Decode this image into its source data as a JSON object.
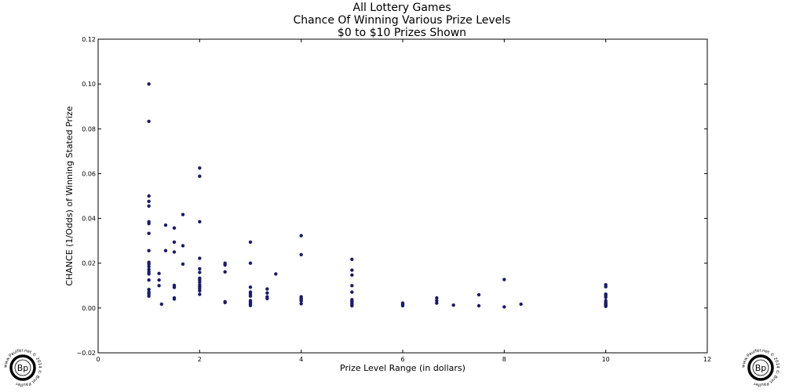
{
  "chart_data": {
    "type": "scatter",
    "title_lines": [
      "All Lottery Games",
      "Chance Of Winning Various Prize Levels",
      "$0 to $10 Prizes Shown"
    ],
    "xlabel": "Prize Level Range (in dollars)",
    "ylabel": "CHANCE (1/Odds) of Winning Stated Prize",
    "xlim": [
      0,
      12
    ],
    "ylim": [
      -0.02,
      0.12
    ],
    "x_ticks": [
      0,
      2,
      4,
      6,
      8,
      10,
      12
    ],
    "x_tick_labels": [
      "0",
      "2",
      "4",
      "6",
      "8",
      "10",
      "12"
    ],
    "y_ticks": [
      -0.02,
      0.0,
      0.02,
      0.04,
      0.06,
      0.08,
      0.1,
      0.12
    ],
    "y_tick_labels": [
      "−0.02",
      "0.00",
      "0.02",
      "0.04",
      "0.06",
      "0.08",
      "0.10",
      "0.12"
    ],
    "grid": false,
    "legend": "none",
    "marker_color": "#1a1a6e",
    "points": [
      [
        1,
        0.1
      ],
      [
        1,
        0.0833
      ],
      [
        1,
        0.05
      ],
      [
        1,
        0.0476
      ],
      [
        1,
        0.0455
      ],
      [
        1,
        0.0385
      ],
      [
        1,
        0.0377
      ],
      [
        1,
        0.0333
      ],
      [
        1,
        0.0256
      ],
      [
        1,
        0.0204
      ],
      [
        1,
        0.0196
      ],
      [
        1,
        0.0185
      ],
      [
        1,
        0.0172
      ],
      [
        1,
        0.0161
      ],
      [
        1,
        0.0152
      ],
      [
        1,
        0.0125
      ],
      [
        1,
        0.0083
      ],
      [
        1,
        0.0071
      ],
      [
        1,
        0.0063
      ],
      [
        1,
        0.0053
      ],
      [
        1.2,
        0.0154
      ],
      [
        1.2,
        0.0125
      ],
      [
        1.2,
        0.01
      ],
      [
        1.25,
        0.0017
      ],
      [
        1.33,
        0.037
      ],
      [
        1.33,
        0.0256
      ],
      [
        1.5,
        0.0357
      ],
      [
        1.5,
        0.0294
      ],
      [
        1.5,
        0.025
      ],
      [
        1.5,
        0.0101
      ],
      [
        1.5,
        0.0092
      ],
      [
        1.5,
        0.0045
      ],
      [
        1.5,
        0.004
      ],
      [
        1.67,
        0.0417
      ],
      [
        1.67,
        0.0278
      ],
      [
        1.67,
        0.0196
      ],
      [
        2,
        0.0625
      ],
      [
        2,
        0.0588
      ],
      [
        2,
        0.0385
      ],
      [
        2,
        0.0222
      ],
      [
        2,
        0.0175
      ],
      [
        2,
        0.0159
      ],
      [
        2,
        0.0133
      ],
      [
        2,
        0.0125
      ],
      [
        2,
        0.0115
      ],
      [
        2,
        0.0103
      ],
      [
        2,
        0.0095
      ],
      [
        2,
        0.0087
      ],
      [
        2,
        0.0077
      ],
      [
        2,
        0.0061
      ],
      [
        2.5,
        0.02
      ],
      [
        2.5,
        0.0192
      ],
      [
        2.5,
        0.0161
      ],
      [
        2.5,
        0.0028
      ],
      [
        2.5,
        0.0024
      ],
      [
        3,
        0.0294
      ],
      [
        3,
        0.02
      ],
      [
        3,
        0.0093
      ],
      [
        3,
        0.0071
      ],
      [
        3,
        0.0062
      ],
      [
        3,
        0.0053
      ],
      [
        3,
        0.0033
      ],
      [
        3,
        0.0025
      ],
      [
        3,
        0.0017
      ],
      [
        3,
        0.0011
      ],
      [
        3.33,
        0.0085
      ],
      [
        3.33,
        0.0067
      ],
      [
        3.33,
        0.005
      ],
      [
        3.33,
        0.0042
      ],
      [
        3.5,
        0.0152
      ],
      [
        4,
        0.0323
      ],
      [
        4,
        0.0238
      ],
      [
        4,
        0.005
      ],
      [
        4,
        0.0044
      ],
      [
        4,
        0.0038
      ],
      [
        4,
        0.0031
      ],
      [
        4,
        0.0019
      ],
      [
        5,
        0.0217
      ],
      [
        5,
        0.0169
      ],
      [
        5,
        0.0147
      ],
      [
        5,
        0.01
      ],
      [
        5,
        0.0071
      ],
      [
        5,
        0.0037
      ],
      [
        5,
        0.0031
      ],
      [
        5,
        0.0025
      ],
      [
        5,
        0.0019
      ],
      [
        5,
        0.0013
      ],
      [
        5,
        0.001
      ],
      [
        6,
        0.0022
      ],
      [
        6,
        0.0017
      ],
      [
        6,
        0.0013
      ],
      [
        6,
        0.001
      ],
      [
        6.67,
        0.0045
      ],
      [
        6.67,
        0.0033
      ],
      [
        6.67,
        0.0022
      ],
      [
        7,
        0.0013
      ],
      [
        7.5,
        0.0059
      ],
      [
        7.5,
        0.001
      ],
      [
        8,
        0.0127
      ],
      [
        8,
        0.0005
      ],
      [
        8.33,
        0.0017
      ],
      [
        10,
        0.0104
      ],
      [
        10,
        0.0095
      ],
      [
        10,
        0.0062
      ],
      [
        10,
        0.0056
      ],
      [
        10,
        0.0048
      ],
      [
        10,
        0.0033
      ],
      [
        10,
        0.0025
      ],
      [
        10,
        0.002
      ],
      [
        10,
        0.0015
      ],
      [
        10,
        0.0011
      ],
      [
        10,
        0.0007
      ]
    ]
  },
  "watermarks": {
    "seal_monogram": "Bp",
    "seal_ring_text": "www.Paulfer.net © 2014 © Bret Paulfer"
  }
}
